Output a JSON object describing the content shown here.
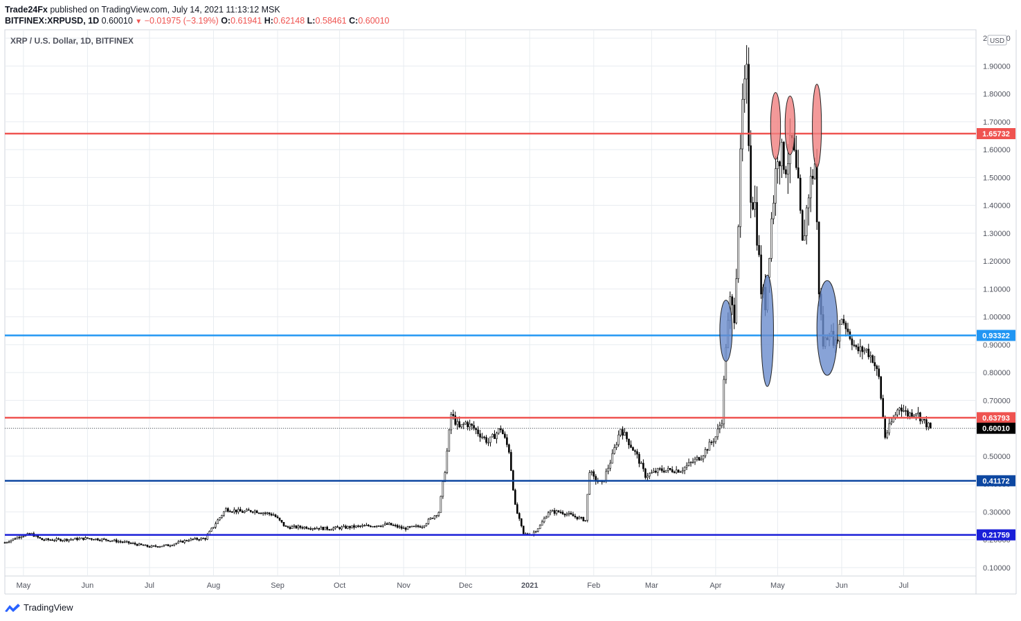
{
  "header": {
    "author": "Trade24Fx",
    "published": "published on TradingView.com, July 14, 2021 11:13:12 MSK"
  },
  "ohlc": {
    "symbol": "BITFINEX:XRPUSD, 1D",
    "last": "0.60010",
    "change": "−0.01975 (−3.19%)",
    "open_label": "O:",
    "open": "0.61941",
    "high_label": "H:",
    "high": "0.62148",
    "low_label": "L:",
    "low": "0.58461",
    "close_label": "C:",
    "close": "0.60010"
  },
  "legend": "XRP / U.S. Dollar, 1D, BITFINEX",
  "currency_badge": "USD",
  "footer": {
    "brand": "TradingView"
  },
  "colors": {
    "resistance": "#ef5350",
    "support_light": "#2196f3",
    "support_dark": "#0d47a1",
    "support_royal": "#1a1fd8",
    "candle": "#000000",
    "grid": "#e8ecf0",
    "marker_red": "#f08080",
    "marker_blue": "#6a8ccd"
  },
  "chart_data": {
    "type": "candlestick",
    "title": "XRP / U.S. Dollar, 1D, BITFINEX",
    "ylim": [
      0.07,
      2.03
    ],
    "y_ticks": [
      "2.00000",
      "1.90000",
      "1.80000",
      "1.70000",
      "1.60000",
      "1.50000",
      "1.40000",
      "1.30000",
      "1.20000",
      "1.10000",
      "1.00000",
      "0.90000",
      "0.80000",
      "0.70000",
      "0.60000",
      "0.50000",
      "0.40000",
      "0.30000",
      "0.20000",
      "0.10000"
    ],
    "x_ticks": [
      {
        "label": "May",
        "date": "2020-05-01"
      },
      {
        "label": "Jun",
        "date": "2020-06-01"
      },
      {
        "label": "Jul",
        "date": "2020-07-01"
      },
      {
        "label": "Aug",
        "date": "2020-08-01"
      },
      {
        "label": "Sep",
        "date": "2020-09-01"
      },
      {
        "label": "Oct",
        "date": "2020-10-01"
      },
      {
        "label": "Nov",
        "date": "2020-11-01"
      },
      {
        "label": "Dec",
        "date": "2020-12-01"
      },
      {
        "label": "2021",
        "date": "2021-01-01",
        "bold": true
      },
      {
        "label": "Feb",
        "date": "2021-02-01"
      },
      {
        "label": "Mar",
        "date": "2021-03-01"
      },
      {
        "label": "Apr",
        "date": "2021-04-01"
      },
      {
        "label": "May",
        "date": "2021-05-01"
      },
      {
        "label": "Jun",
        "date": "2021-06-01"
      },
      {
        "label": "Jul",
        "date": "2021-07-01"
      }
    ],
    "x_range": [
      "2020-04-22",
      "2021-08-05"
    ],
    "horizontal_levels": [
      {
        "value": 1.65732,
        "label": "1.65732",
        "color": "#ef5350"
      },
      {
        "value": 0.93322,
        "label": "0.93322",
        "color": "#2196f3"
      },
      {
        "value": 0.63793,
        "label": "0.63793",
        "color": "#ef5350"
      },
      {
        "value": 0.41172,
        "label": "0.41172",
        "color": "#0d47a1"
      },
      {
        "value": 0.21759,
        "label": "0.21759",
        "color": "#1a1fd8"
      }
    ],
    "last_price": {
      "value": 0.6001,
      "label": "0.60010"
    },
    "price_path": [
      [
        "2020-04-22",
        0.19
      ],
      [
        "2020-04-30",
        0.215
      ],
      [
        "2020-05-05",
        0.22
      ],
      [
        "2020-05-10",
        0.2
      ],
      [
        "2020-05-20",
        0.2
      ],
      [
        "2020-06-01",
        0.205
      ],
      [
        "2020-06-10",
        0.2
      ],
      [
        "2020-06-20",
        0.19
      ],
      [
        "2020-07-01",
        0.175
      ],
      [
        "2020-07-10",
        0.18
      ],
      [
        "2020-07-20",
        0.2
      ],
      [
        "2020-07-28",
        0.205
      ],
      [
        "2020-08-03",
        0.27
      ],
      [
        "2020-08-07",
        0.31
      ],
      [
        "2020-08-15",
        0.3
      ],
      [
        "2020-08-20",
        0.305
      ],
      [
        "2020-08-30",
        0.29
      ],
      [
        "2020-09-05",
        0.245
      ],
      [
        "2020-09-15",
        0.245
      ],
      [
        "2020-09-25",
        0.24
      ],
      [
        "2020-10-05",
        0.245
      ],
      [
        "2020-10-15",
        0.25
      ],
      [
        "2020-10-25",
        0.255
      ],
      [
        "2020-11-01",
        0.24
      ],
      [
        "2020-11-10",
        0.25
      ],
      [
        "2020-11-18",
        0.3
      ],
      [
        "2020-11-21",
        0.45
      ],
      [
        "2020-11-24",
        0.65
      ],
      [
        "2020-11-28",
        0.6
      ],
      [
        "2020-12-01",
        0.62
      ],
      [
        "2020-12-05",
        0.6
      ],
      [
        "2020-12-12",
        0.55
      ],
      [
        "2020-12-18",
        0.6
      ],
      [
        "2020-12-22",
        0.52
      ],
      [
        "2020-12-25",
        0.32
      ],
      [
        "2020-12-29",
        0.22
      ],
      [
        "2021-01-02",
        0.22
      ],
      [
        "2021-01-06",
        0.25
      ],
      [
        "2021-01-10",
        0.3
      ],
      [
        "2021-01-16",
        0.3
      ],
      [
        "2021-01-24",
        0.28
      ],
      [
        "2021-01-28",
        0.27
      ],
      [
        "2021-01-30",
        0.45
      ],
      [
        "2021-02-01",
        0.42
      ],
      [
        "2021-02-05",
        0.4
      ],
      [
        "2021-02-10",
        0.5
      ],
      [
        "2021-02-14",
        0.6
      ],
      [
        "2021-02-18",
        0.55
      ],
      [
        "2021-02-22",
        0.5
      ],
      [
        "2021-02-26",
        0.43
      ],
      [
        "2021-03-05",
        0.45
      ],
      [
        "2021-03-15",
        0.45
      ],
      [
        "2021-03-25",
        0.5
      ],
      [
        "2021-04-01",
        0.57
      ],
      [
        "2021-04-04",
        0.63
      ],
      [
        "2021-04-06",
        0.9
      ],
      [
        "2021-04-08",
        1.05
      ],
      [
        "2021-04-10",
        1.0
      ],
      [
        "2021-04-12",
        1.35
      ],
      [
        "2021-04-14",
        1.75
      ],
      [
        "2021-04-16",
        1.85
      ],
      [
        "2021-04-18",
        1.45
      ],
      [
        "2021-04-20",
        1.4
      ],
      [
        "2021-04-23",
        1.1
      ],
      [
        "2021-04-25",
        1.05
      ],
      [
        "2021-04-28",
        1.35
      ],
      [
        "2021-05-01",
        1.6
      ],
      [
        "2021-05-05",
        1.55
      ],
      [
        "2021-05-08",
        1.62
      ],
      [
        "2021-05-11",
        1.45
      ],
      [
        "2021-05-13",
        1.25
      ],
      [
        "2021-05-16",
        1.45
      ],
      [
        "2021-05-19",
        1.55
      ],
      [
        "2021-05-21",
        1.1
      ],
      [
        "2021-05-23",
        0.9
      ],
      [
        "2021-05-26",
        0.95
      ],
      [
        "2021-05-29",
        0.9
      ],
      [
        "2021-06-01",
        1.0
      ],
      [
        "2021-06-04",
        0.95
      ],
      [
        "2021-06-08",
        0.88
      ],
      [
        "2021-06-13",
        0.88
      ],
      [
        "2021-06-16",
        0.85
      ],
      [
        "2021-06-19",
        0.78
      ],
      [
        "2021-06-22",
        0.57
      ],
      [
        "2021-06-25",
        0.62
      ],
      [
        "2021-06-29",
        0.68
      ],
      [
        "2021-07-03",
        0.65
      ],
      [
        "2021-07-07",
        0.66
      ],
      [
        "2021-07-10",
        0.63
      ],
      [
        "2021-07-14",
        0.6001
      ]
    ],
    "annotations": [
      {
        "shape": "ellipse",
        "color": "#f08080",
        "date": "2021-04-30",
        "value": 1.685,
        "span_days": 2.4,
        "span_value": 0.12
      },
      {
        "shape": "ellipse",
        "color": "#f08080",
        "date": "2021-05-07",
        "value": 1.687,
        "span_days": 2.4,
        "span_value": 0.105
      },
      {
        "shape": "ellipse",
        "color": "#f08080",
        "date": "2021-05-20",
        "value": 1.685,
        "span_days": 2.2,
        "span_value": 0.15
      },
      {
        "shape": "ellipse",
        "color": "#6a8ccd",
        "date": "2021-04-06",
        "value": 0.95,
        "span_days": 3.0,
        "span_value": 0.11
      },
      {
        "shape": "ellipse",
        "color": "#6a8ccd",
        "date": "2021-04-26",
        "value": 0.95,
        "span_days": 3.0,
        "span_value": 0.2
      },
      {
        "shape": "ellipse",
        "color": "#6a8ccd",
        "date": "2021-05-25",
        "value": 0.96,
        "span_days": 5.0,
        "span_value": 0.17
      }
    ]
  }
}
